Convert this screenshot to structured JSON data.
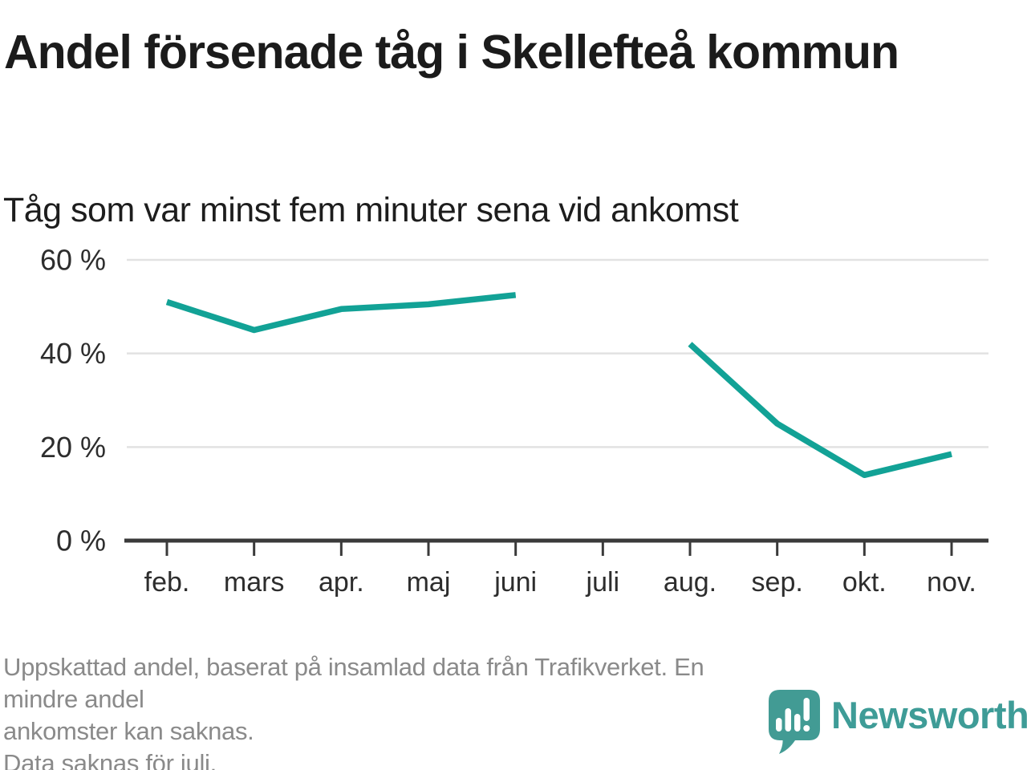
{
  "header": {
    "title": "Andel försenade tåg i Skellefteå kommun",
    "subtitle": "Tåg som var minst fem minuter sena vid ankomst"
  },
  "chart_data": {
    "type": "line",
    "title": "Andel försenade tåg i Skellefteå kommun",
    "subtitle": "Tåg som var minst fem minuter sena vid ankomst",
    "unit": "%",
    "categories": [
      "feb.",
      "mars",
      "apr.",
      "maj",
      "juni",
      "juli",
      "aug.",
      "sep.",
      "okt.",
      "nov."
    ],
    "values": [
      51,
      45,
      49.5,
      50.5,
      52.5,
      null,
      42,
      25,
      14,
      18.5
    ],
    "missing_data_categories": [
      "juli"
    ],
    "ylim": [
      0,
      60
    ],
    "yticks": [
      0,
      20,
      40,
      60
    ],
    "ytick_suffix": " %",
    "xlabel": "",
    "ylabel": "",
    "grid": "horizontal",
    "legend_position": "none",
    "line_color": "#12A296",
    "axis_color": "#3a3a3a",
    "gridline_color": "#e2e2e2",
    "tick_label_color": "#2d2d2d"
  },
  "footer": {
    "lines": [
      "Uppskattad andel, baserat på insamlad data från Trafikverket. En mindre andel",
      "ankomster kan saknas.",
      "Data saknas för juli."
    ]
  },
  "logo": {
    "brand": "Newsworthy",
    "icon": "newsworthy-bubble-barchart-icon",
    "color": "#3E9C97"
  }
}
